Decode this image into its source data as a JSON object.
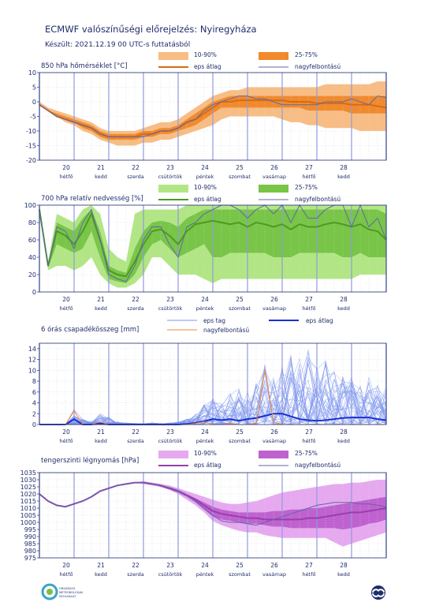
{
  "header": {
    "title": "ECMWF valószínűségi előrejelzés: Nyiregyháza",
    "subtitle": "Készült: 2021.12.19 00 UTC-s futtatásból"
  },
  "days": [
    {
      "num": "20",
      "name": "hétfő"
    },
    {
      "num": "21",
      "name": "kedd"
    },
    {
      "num": "22",
      "name": "szerda"
    },
    {
      "num": "23",
      "name": "csütörtök"
    },
    {
      "num": "24",
      "name": "péntek"
    },
    {
      "num": "25",
      "name": "szombat"
    },
    {
      "num": "26",
      "name": "vasárnap"
    },
    {
      "num": "27",
      "name": "hétfő"
    },
    {
      "num": "28",
      "name": "kedd"
    }
  ],
  "chart_data": [
    {
      "type": "area",
      "title": "850 hPa hőmérséklet [°C]",
      "ylim": [
        -20,
        10
      ],
      "yticks": [
        10,
        5,
        0,
        -5,
        -10,
        -15,
        -20
      ],
      "grid": true,
      "legend": {
        "band_outer": "10-90%",
        "band_inner": "25-75%",
        "mean": "eps átlag",
        "hires": "nagyfelbontású"
      },
      "colors": {
        "outer": "#f8bd84",
        "inner": "#f18a2c",
        "mean": "#d96a14",
        "hires": "#5d6aa6"
      },
      "x": [
        0,
        6,
        12,
        18,
        24,
        30,
        36,
        42,
        48,
        54,
        60,
        66,
        72,
        78,
        84,
        90,
        96,
        102,
        108,
        114,
        120,
        126,
        132,
        138,
        144,
        150,
        156,
        162,
        168,
        174,
        180,
        186,
        192,
        198,
        204,
        210,
        216,
        222,
        228,
        234,
        240
      ],
      "hires": [
        -1,
        -3,
        -5,
        -6,
        -7,
        -8,
        -9,
        -11,
        -12,
        -12,
        -12,
        -12,
        -12,
        -11,
        -10,
        -10,
        -9,
        -7,
        -6,
        -3,
        -1,
        0,
        1,
        2,
        2,
        1,
        1,
        0,
        -1,
        -1,
        -1,
        -1,
        -1,
        0,
        0,
        0,
        1,
        0,
        -1,
        2,
        1.5
      ],
      "mean": [
        -1,
        -3,
        -5,
        -6,
        -7,
        -8,
        -9,
        -11,
        -12,
        -12,
        -12,
        -12,
        -11,
        -11,
        -10,
        -10,
        -9,
        -7,
        -6,
        -4,
        -2,
        0,
        0,
        0.5,
        0.5,
        0.5,
        0.5,
        0.5,
        0.5,
        0,
        0,
        0,
        -0.5,
        -0.5,
        -0.5,
        -0.5,
        -1,
        -1,
        -1,
        -1.5,
        -2
      ],
      "p10": [
        -1,
        -3,
        -5,
        -7,
        -8,
        -10,
        -11,
        -13,
        -14,
        -15,
        -15,
        -15,
        -14,
        -14,
        -13,
        -13,
        -12,
        -11,
        -10,
        -9,
        -8,
        -6,
        -5,
        -5,
        -5,
        -5,
        -5,
        -5,
        -6,
        -7,
        -7,
        -8,
        -8,
        -9,
        -9,
        -9,
        -9,
        -10,
        -10,
        -10,
        -10
      ],
      "p25": [
        -1,
        -3,
        -5,
        -6,
        -7,
        -9,
        -10,
        -12,
        -13,
        -13,
        -13,
        -13,
        -12,
        -12,
        -11,
        -11,
        -10,
        -9,
        -8,
        -6,
        -4,
        -2,
        -2,
        -2,
        -2,
        -2,
        -2,
        -2,
        -2,
        -2,
        -2,
        -3,
        -3,
        -3,
        -3,
        -3,
        -4,
        -4,
        -4,
        -4,
        -4
      ],
      "p75": [
        -1,
        -3,
        -4,
        -5,
        -6,
        -7,
        -8,
        -10,
        -11,
        -11,
        -11,
        -11,
        -10,
        -10,
        -9,
        -9,
        -8,
        -6,
        -4,
        -2,
        0,
        1,
        2,
        2,
        2,
        2,
        2,
        2,
        2,
        2,
        2,
        2,
        2,
        2,
        2,
        2,
        2,
        2,
        2,
        2,
        2
      ],
      "p90": [
        0,
        -2,
        -3,
        -4,
        -5,
        -6,
        -7,
        -9,
        -10,
        -10,
        -10,
        -10,
        -9,
        -8,
        -7,
        -7,
        -6,
        -4,
        -2,
        0,
        2,
        3,
        4,
        4,
        5,
        5,
        5,
        5,
        5,
        5,
        5,
        5,
        5,
        6,
        6,
        6,
        6,
        6,
        6,
        7,
        7
      ]
    },
    {
      "type": "area",
      "title": "700 hPa relatív nedvesség [%]",
      "ylim": [
        0,
        100
      ],
      "yticks": [
        100,
        80,
        60,
        40,
        20,
        0
      ],
      "grid": true,
      "legend": {
        "band_outer": "10-90%",
        "band_inner": "25-75%",
        "mean": "eps átlag",
        "hires": "nagyfelbontású"
      },
      "colors": {
        "outer": "#b2e685",
        "inner": "#78c547",
        "mean": "#4f9a22",
        "hires": "#5d6aa6"
      },
      "x": [
        0,
        6,
        12,
        18,
        24,
        30,
        36,
        42,
        48,
        54,
        60,
        66,
        72,
        78,
        84,
        90,
        96,
        102,
        108,
        114,
        120,
        126,
        132,
        138,
        144,
        150,
        156,
        162,
        168,
        174,
        180,
        186,
        192,
        198,
        204,
        210,
        216,
        222,
        228,
        234,
        240
      ],
      "hires": [
        95,
        30,
        75,
        70,
        50,
        80,
        95,
        60,
        20,
        15,
        12,
        30,
        60,
        75,
        75,
        55,
        40,
        75,
        80,
        90,
        95,
        100,
        100,
        95,
        85,
        95,
        100,
        90,
        100,
        80,
        100,
        85,
        85,
        95,
        100,
        100,
        75,
        100,
        75,
        85,
        60
      ],
      "mean": [
        95,
        30,
        70,
        65,
        55,
        70,
        90,
        60,
        25,
        20,
        18,
        35,
        55,
        70,
        72,
        65,
        55,
        70,
        78,
        80,
        82,
        80,
        78,
        80,
        75,
        80,
        78,
        75,
        78,
        72,
        78,
        75,
        75,
        78,
        80,
        78,
        75,
        78,
        72,
        70,
        60
      ],
      "p10": [
        90,
        25,
        30,
        30,
        25,
        30,
        40,
        20,
        10,
        5,
        5,
        10,
        20,
        40,
        40,
        30,
        20,
        20,
        20,
        15,
        10,
        15,
        15,
        15,
        15,
        15,
        15,
        15,
        15,
        15,
        15,
        15,
        15,
        15,
        15,
        15,
        15,
        20,
        20,
        20,
        20
      ],
      "p25": [
        92,
        28,
        55,
        50,
        45,
        50,
        70,
        40,
        15,
        12,
        10,
        20,
        40,
        55,
        60,
        50,
        40,
        45,
        50,
        55,
        40,
        40,
        45,
        45,
        45,
        45,
        45,
        40,
        40,
        40,
        45,
        45,
        45,
        45,
        45,
        40,
        40,
        45,
        40,
        40,
        40
      ],
      "p75": [
        97,
        32,
        80,
        75,
        70,
        85,
        95,
        70,
        30,
        25,
        22,
        50,
        70,
        80,
        82,
        80,
        75,
        85,
        90,
        95,
        95,
        95,
        95,
        95,
        95,
        95,
        95,
        95,
        95,
        95,
        95,
        95,
        95,
        95,
        95,
        95,
        95,
        95,
        95,
        95,
        90
      ],
      "p90": [
        100,
        35,
        90,
        85,
        80,
        95,
        100,
        90,
        50,
        40,
        35,
        90,
        95,
        95,
        95,
        95,
        95,
        100,
        100,
        100,
        100,
        100,
        100,
        100,
        100,
        100,
        100,
        100,
        100,
        100,
        100,
        100,
        100,
        100,
        100,
        100,
        100,
        100,
        100,
        100,
        100
      ]
    },
    {
      "type": "line",
      "title": "6 órás csapadékösszeg [mm]",
      "ylim": [
        0,
        15
      ],
      "yticks": [
        14,
        12,
        10,
        8,
        6,
        4,
        2,
        0
      ],
      "grid": true,
      "legend": {
        "members": "eps tag",
        "mean": "eps átlag",
        "hires": "nagyfelbontású"
      },
      "colors": {
        "members": "#7c95ee",
        "mean": "#1a2fd2",
        "hires": "#ef8a3a"
      },
      "x": [
        0,
        6,
        12,
        18,
        24,
        30,
        36,
        42,
        48,
        54,
        60,
        66,
        72,
        78,
        84,
        90,
        96,
        102,
        108,
        114,
        120,
        126,
        132,
        138,
        144,
        150,
        156,
        162,
        168,
        174,
        180,
        186,
        192,
        198,
        204,
        210,
        216,
        222,
        228,
        234,
        240
      ],
      "mean": [
        0,
        0,
        0,
        0,
        1,
        0,
        0,
        0.2,
        0,
        0,
        0,
        0,
        0,
        0,
        0,
        0,
        0,
        0.1,
        0.3,
        0.6,
        1,
        0.8,
        1,
        0.7,
        1,
        1.2,
        1.6,
        2,
        2,
        1.5,
        1,
        0.8,
        0.7,
        0.8,
        1,
        1.2,
        1.3,
        1.3,
        1.3,
        1,
        0.8
      ],
      "hires": [
        0,
        0,
        0,
        0,
        2.5,
        0,
        0,
        0.5,
        0,
        0,
        0,
        0,
        0,
        0,
        0,
        0,
        0,
        0,
        0.2,
        0.5,
        0,
        0,
        0.2,
        0,
        0,
        0.3,
        10,
        0.5,
        0,
        0,
        0,
        0,
        0,
        0,
        0,
        0,
        0,
        0,
        0,
        0,
        0
      ],
      "members_envelope": [
        0,
        0,
        0,
        0,
        3,
        1,
        0.5,
        2,
        1.5,
        0.5,
        0.3,
        0.2,
        0.2,
        0.3,
        0.2,
        0.3,
        0.5,
        1,
        2,
        4,
        5,
        4,
        6,
        7,
        6,
        9,
        12,
        11,
        13,
        14,
        13,
        14,
        11,
        12,
        10,
        9,
        10,
        8,
        9,
        8,
        7
      ]
    },
    {
      "type": "area",
      "title": "tengerszinti légnyomás [hPa]",
      "ylim": [
        975,
        1035
      ],
      "yticks": [
        1035,
        1030,
        1025,
        1020,
        1015,
        1010,
        1005,
        1000,
        995,
        990,
        985,
        980,
        975
      ],
      "grid": true,
      "legend": {
        "band_outer": "10-90%",
        "band_inner": "25-75%",
        "mean": "eps átlag",
        "hires": "nagyfelbontású"
      },
      "colors": {
        "outer": "#e6a9ef",
        "inner": "#bf62cf",
        "mean": "#9a3cae",
        "hires": "#5d6aa6"
      },
      "x": [
        0,
        6,
        12,
        18,
        24,
        30,
        36,
        42,
        48,
        54,
        60,
        66,
        72,
        78,
        84,
        90,
        96,
        102,
        108,
        114,
        120,
        126,
        132,
        138,
        144,
        150,
        156,
        162,
        168,
        174,
        180,
        186,
        192,
        198,
        204,
        210,
        216,
        222,
        228,
        234,
        240
      ],
      "hires": [
        1020,
        1015,
        1012,
        1011,
        1013,
        1015,
        1018,
        1022,
        1024,
        1026,
        1027,
        1028,
        1028,
        1027,
        1026,
        1024,
        1022,
        1019,
        1015,
        1010,
        1005,
        1001,
        1000,
        1000,
        999,
        998,
        1000,
        1002,
        1004,
        1006,
        1008,
        1010,
        1012,
        1013,
        1014,
        1014,
        1014,
        1013,
        1013,
        1012,
        1011
      ],
      "mean": [
        1020,
        1015,
        1012,
        1011,
        1013,
        1015,
        1018,
        1022,
        1024,
        1026,
        1027,
        1028,
        1028,
        1027,
        1026,
        1024,
        1022,
        1019,
        1016,
        1012,
        1008,
        1006,
        1005,
        1004,
        1003,
        1003,
        1002,
        1002,
        1002,
        1002,
        1002,
        1003,
        1003,
        1004,
        1005,
        1006,
        1007,
        1007,
        1008,
        1009,
        1010
      ],
      "p10": [
        1020,
        1015,
        1012,
        1011,
        1013,
        1015,
        1018,
        1022,
        1024,
        1026,
        1027,
        1028,
        1027,
        1026,
        1025,
        1023,
        1020,
        1016,
        1012,
        1007,
        1001,
        998,
        996,
        994,
        993,
        993,
        991,
        990,
        989,
        989,
        989,
        989,
        989,
        989,
        986,
        983,
        985,
        987,
        989,
        991,
        993
      ],
      "p25": [
        1020,
        1015,
        1012,
        1011,
        1013,
        1015,
        1018,
        1022,
        1024,
        1026,
        1027,
        1028,
        1028,
        1027,
        1025,
        1023,
        1021,
        1018,
        1014,
        1009,
        1004,
        1002,
        1001,
        1000,
        999,
        999,
        998,
        997,
        997,
        996,
        996,
        996,
        996,
        996,
        996,
        995,
        996,
        997,
        999,
        1000,
        1002
      ],
      "p75": [
        1020,
        1015,
        1012,
        1011,
        1013,
        1015,
        1018,
        1022,
        1024,
        1026,
        1027,
        1028,
        1028,
        1027,
        1026,
        1025,
        1023,
        1020,
        1017,
        1014,
        1011,
        1009,
        1008,
        1007,
        1007,
        1007,
        1007,
        1008,
        1008,
        1009,
        1009,
        1010,
        1010,
        1011,
        1012,
        1013,
        1014,
        1015,
        1016,
        1017,
        1018
      ],
      "p90": [
        1020,
        1015,
        1012,
        1011,
        1013,
        1015,
        1018,
        1022,
        1024,
        1026,
        1027,
        1028,
        1029,
        1028,
        1027,
        1026,
        1024,
        1022,
        1020,
        1018,
        1016,
        1014,
        1013,
        1013,
        1014,
        1015,
        1017,
        1019,
        1021,
        1022,
        1023,
        1024,
        1025,
        1026,
        1027,
        1027,
        1028,
        1028,
        1029,
        1030,
        1030
      ]
    }
  ],
  "footer": {
    "logo_left_text": "ORSZÁGOS METEOROLÓGIAI SZOLGÁLAT"
  }
}
